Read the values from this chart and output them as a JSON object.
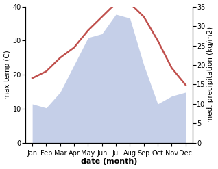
{
  "months": [
    "Jan",
    "Feb",
    "Mar",
    "Apr",
    "May",
    "Jun",
    "Jul",
    "Aug",
    "Sep",
    "Oct",
    "Nov",
    "Dec"
  ],
  "temperature": [
    19,
    21,
    25,
    28,
    33,
    37,
    41,
    41,
    37,
    30,
    22,
    17
  ],
  "precipitation": [
    10,
    9,
    13,
    20,
    27,
    28,
    33,
    32,
    20,
    10,
    12,
    13
  ],
  "temp_color": "#c0504d",
  "precip_color": "#c5cfe8",
  "temp_ylim": [
    0,
    40
  ],
  "precip_ylim": [
    0,
    35
  ],
  "temp_yticks": [
    0,
    10,
    20,
    30,
    40
  ],
  "precip_yticks": [
    0,
    5,
    10,
    15,
    20,
    25,
    30,
    35
  ],
  "xlabel": "date (month)",
  "ylabel_left": "max temp (C)",
  "ylabel_right": "med. precipitation (kg/m2)",
  "temp_linewidth": 1.8,
  "xlabel_fontsize": 8,
  "ylabel_fontsize": 7.5,
  "tick_fontsize": 7,
  "background_color": "#ffffff"
}
